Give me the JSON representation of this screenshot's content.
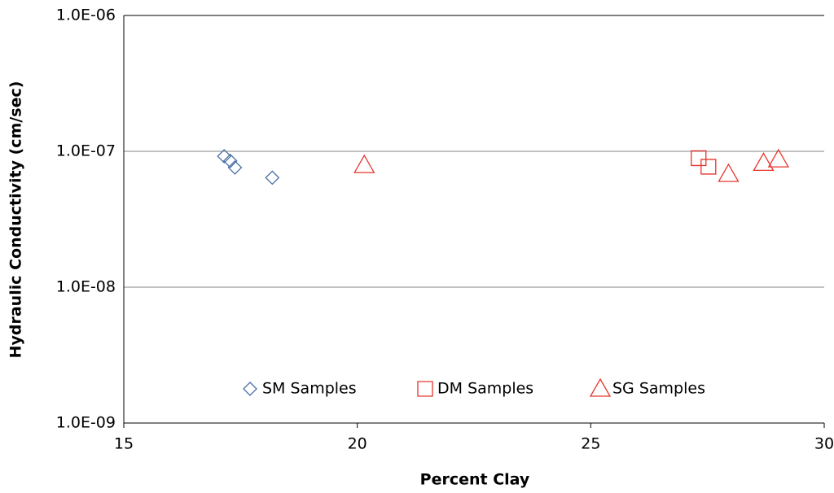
{
  "chart_data": {
    "type": "scatter",
    "x_label": "Percent Clay",
    "y_label": "Hydraulic Conductivity (cm/sec)",
    "xlim": [
      15,
      30
    ],
    "xticks": [
      15,
      20,
      25,
      30
    ],
    "ylim": [
      1e-09,
      1e-06
    ],
    "yticks": [
      {
        "value": 1e-09,
        "label": "1.0E-09"
      },
      {
        "value": 1e-08,
        "label": "1.0E-08"
      },
      {
        "value": 1e-07,
        "label": "1.0E-07"
      },
      {
        "value": 1e-06,
        "label": "1.0E-06"
      }
    ],
    "y_scale": "log",
    "grid": true,
    "legend": "bottom",
    "series": [
      {
        "name": "SM Samples",
        "color": "#4a6fa5",
        "marker": "diamond",
        "x": [
          17.15,
          17.28,
          17.38,
          18.18
        ],
        "values": [
          9.2e-08,
          8.5e-08,
          7.6e-08,
          6.4e-08
        ]
      },
      {
        "name": "DM Samples",
        "color": "#e8342c",
        "marker": "square",
        "x": [
          27.31,
          27.52
        ],
        "values": [
          8.9e-08,
          7.7e-08
        ]
      },
      {
        "name": "SG Samples",
        "color": "#e8342c",
        "marker": "triangle",
        "x": [
          20.15,
          27.95,
          28.7,
          29.02
        ],
        "values": [
          7.9e-08,
          6.8e-08,
          8.2e-08,
          8.7e-08
        ]
      }
    ]
  }
}
